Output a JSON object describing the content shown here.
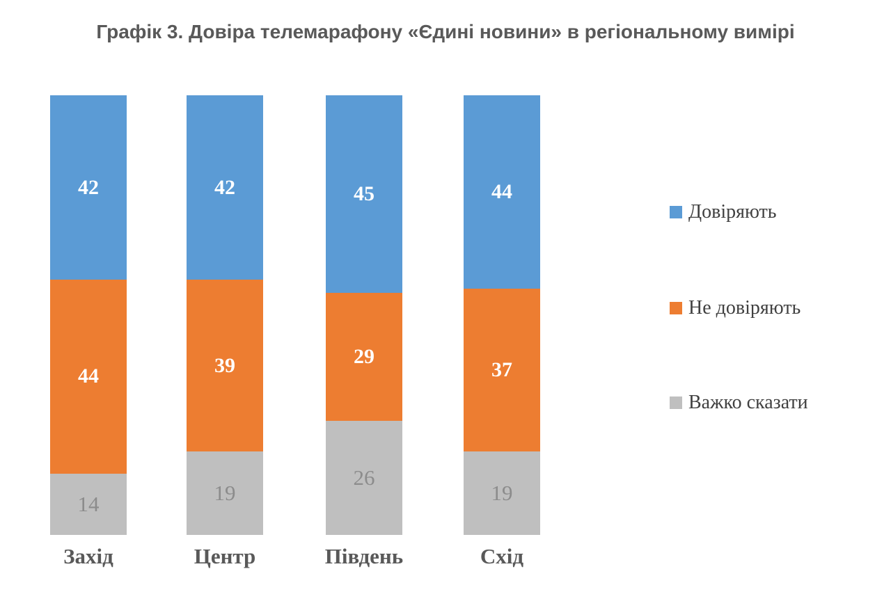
{
  "title": "Графік 3. Довіра телемарафону «Єдині новини» в регіональному вимірі",
  "colors": {
    "trust_blue": "#5B9BD5",
    "distrust_orange": "#ED7D31",
    "hard_to_say_gray": "#BFBFBF",
    "title_text": "#595959",
    "category_text": "#595959",
    "gray_value_text": "#8c8c8c",
    "legend_text": "#404040"
  },
  "chart_data": {
    "type": "bar",
    "subtype": "stacked",
    "title": "Графік 3. Довіра телемарафону «Єдині новини» в регіональному вимірі",
    "categories": [
      "Захід",
      "Центр",
      "Південь",
      "Схід"
    ],
    "series": [
      {
        "key": "trust",
        "name": "Довіряють",
        "color": "#5B9BD5",
        "label_style": "light",
        "values": [
          42,
          42,
          45,
          44
        ]
      },
      {
        "key": "distrust",
        "name": "Не довіряють",
        "color": "#ED7D31",
        "label_style": "light",
        "values": [
          44,
          39,
          29,
          37
        ]
      },
      {
        "key": "hard-to-say",
        "name": "Важко сказати",
        "color": "#BFBFBF",
        "label_style": "dark",
        "values": [
          14,
          19,
          26,
          19
        ]
      }
    ],
    "ylim": [
      0,
      100
    ],
    "grid": false,
    "axes_visible": false,
    "legend_position": "right",
    "value_labels": "inside-center"
  }
}
